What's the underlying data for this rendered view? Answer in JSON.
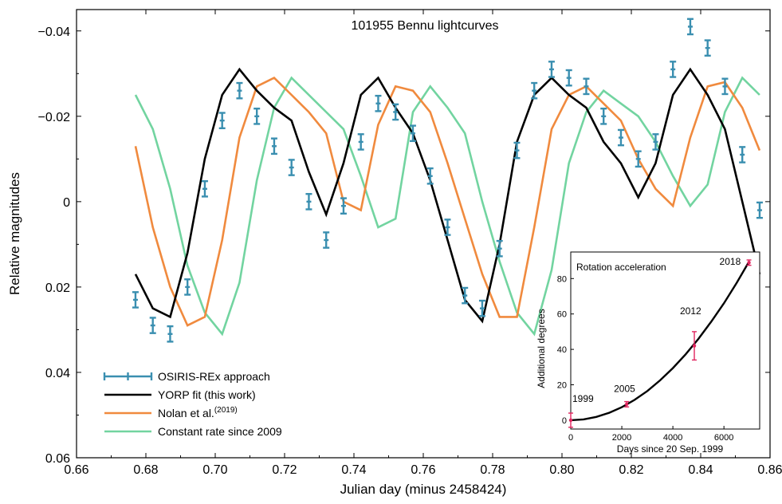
{
  "chart_data": [
    {
      "type": "line",
      "title": "101955 Bennu lightcurves",
      "xlabel": "Julian day (minus 2458424)",
      "ylabel": "Relative magnitudes",
      "xlim": [
        0.66,
        0.86
      ],
      "ylim": [
        0.06,
        -0.045
      ],
      "y_inverted": true,
      "grid": false,
      "legend_position": "bottom-left",
      "x_ticks": [
        {
          "value": 0.66,
          "label": "0.66"
        },
        {
          "value": 0.68,
          "label": "0.68"
        },
        {
          "value": 0.7,
          "label": "0.70"
        },
        {
          "value": 0.72,
          "label": "0.72"
        },
        {
          "value": 0.74,
          "label": "0.74"
        },
        {
          "value": 0.76,
          "label": "0.76"
        },
        {
          "value": 0.78,
          "label": "0.78"
        },
        {
          "value": 0.8,
          "label": "0.80"
        },
        {
          "value": 0.82,
          "label": "0.82"
        },
        {
          "value": 0.84,
          "label": "0.84"
        },
        {
          "value": 0.86,
          "label": "0.86"
        }
      ],
      "y_ticks": [
        {
          "value": -0.04,
          "label": "−0.04"
        },
        {
          "value": -0.02,
          "label": "−0.02"
        },
        {
          "value": 0,
          "label": "0"
        },
        {
          "value": 0.02,
          "label": "0.02"
        },
        {
          "value": 0.04,
          "label": "0.04"
        },
        {
          "value": 0.06,
          "label": "0.06"
        }
      ],
      "series": [
        {
          "name": "OSIRIS-REx approach",
          "kind": "errorbar",
          "color": "#3a8fb0",
          "points": [
            {
              "x": 0.677,
              "y": 0.023,
              "err": 0.0018
            },
            {
              "x": 0.682,
              "y": 0.029,
              "err": 0.0018
            },
            {
              "x": 0.687,
              "y": 0.031,
              "err": 0.0018
            },
            {
              "x": 0.692,
              "y": 0.02,
              "err": 0.0018
            },
            {
              "x": 0.697,
              "y": -0.003,
              "err": 0.0018
            },
            {
              "x": 0.702,
              "y": -0.019,
              "err": 0.0018
            },
            {
              "x": 0.707,
              "y": -0.026,
              "err": 0.0018
            },
            {
              "x": 0.712,
              "y": -0.02,
              "err": 0.0018
            },
            {
              "x": 0.717,
              "y": -0.013,
              "err": 0.0018
            },
            {
              "x": 0.722,
              "y": -0.008,
              "err": 0.0018
            },
            {
              "x": 0.727,
              "y": 0.0,
              "err": 0.0018
            },
            {
              "x": 0.732,
              "y": 0.009,
              "err": 0.0018
            },
            {
              "x": 0.737,
              "y": 0.001,
              "err": 0.0018
            },
            {
              "x": 0.742,
              "y": -0.014,
              "err": 0.0018
            },
            {
              "x": 0.747,
              "y": -0.023,
              "err": 0.0018
            },
            {
              "x": 0.752,
              "y": -0.021,
              "err": 0.0018
            },
            {
              "x": 0.757,
              "y": -0.016,
              "err": 0.0018
            },
            {
              "x": 0.762,
              "y": -0.006,
              "err": 0.0018
            },
            {
              "x": 0.767,
              "y": 0.006,
              "err": 0.0018
            },
            {
              "x": 0.772,
              "y": 0.022,
              "err": 0.0018
            },
            {
              "x": 0.777,
              "y": 0.025,
              "err": 0.0018
            },
            {
              "x": 0.782,
              "y": 0.011,
              "err": 0.0018
            },
            {
              "x": 0.787,
              "y": -0.012,
              "err": 0.0018
            },
            {
              "x": 0.792,
              "y": -0.026,
              "err": 0.0018
            },
            {
              "x": 0.797,
              "y": -0.031,
              "err": 0.0018
            },
            {
              "x": 0.802,
              "y": -0.029,
              "err": 0.0018
            },
            {
              "x": 0.807,
              "y": -0.027,
              "err": 0.0018
            },
            {
              "x": 0.812,
              "y": -0.02,
              "err": 0.0018
            },
            {
              "x": 0.817,
              "y": -0.015,
              "err": 0.0018
            },
            {
              "x": 0.822,
              "y": -0.01,
              "err": 0.0018
            },
            {
              "x": 0.827,
              "y": -0.014,
              "err": 0.0018
            },
            {
              "x": 0.832,
              "y": -0.031,
              "err": 0.0018
            },
            {
              "x": 0.837,
              "y": -0.041,
              "err": 0.0018
            },
            {
              "x": 0.842,
              "y": -0.036,
              "err": 0.0018
            },
            {
              "x": 0.847,
              "y": -0.027,
              "err": 0.0018
            },
            {
              "x": 0.852,
              "y": -0.011,
              "err": 0.0018
            },
            {
              "x": 0.857,
              "y": 0.002,
              "err": 0.0018
            }
          ]
        },
        {
          "name": "YORP fit (this work)",
          "kind": "line",
          "color": "#000000",
          "x": [
            0.677,
            0.682,
            0.687,
            0.692,
            0.697,
            0.702,
            0.707,
            0.712,
            0.717,
            0.722,
            0.727,
            0.732,
            0.737,
            0.742,
            0.747,
            0.752,
            0.757,
            0.762,
            0.767,
            0.772,
            0.777,
            0.782,
            0.787,
            0.792,
            0.797,
            0.802,
            0.807,
            0.812,
            0.817,
            0.822,
            0.827,
            0.832,
            0.837,
            0.842,
            0.847,
            0.852,
            0.857
          ],
          "values": [
            0.017,
            0.025,
            0.027,
            0.012,
            -0.01,
            -0.025,
            -0.031,
            -0.026,
            -0.022,
            -0.019,
            -0.007,
            0.003,
            -0.009,
            -0.025,
            -0.029,
            -0.022,
            -0.016,
            -0.005,
            0.009,
            0.023,
            0.028,
            0.01,
            -0.014,
            -0.025,
            -0.029,
            -0.025,
            -0.022,
            -0.014,
            -0.009,
            -0.001,
            -0.009,
            -0.025,
            -0.031,
            -0.025,
            -0.017,
            0.0,
            0.017
          ]
        },
        {
          "name": "Nolan et al.",
          "name_sup": "(2019)",
          "kind": "line",
          "color": "#f08a3e",
          "x": [
            0.677,
            0.682,
            0.687,
            0.692,
            0.697,
            0.702,
            0.707,
            0.712,
            0.717,
            0.722,
            0.727,
            0.732,
            0.737,
            0.742,
            0.747,
            0.752,
            0.757,
            0.762,
            0.767,
            0.772,
            0.777,
            0.782,
            0.787,
            0.792,
            0.797,
            0.802,
            0.807,
            0.812,
            0.817,
            0.822,
            0.827,
            0.832,
            0.837,
            0.842,
            0.847,
            0.852,
            0.857
          ],
          "values": [
            -0.013,
            0.006,
            0.02,
            0.029,
            0.027,
            0.009,
            -0.015,
            -0.027,
            -0.029,
            -0.025,
            -0.021,
            -0.016,
            0.0,
            0.002,
            -0.018,
            -0.027,
            -0.026,
            -0.021,
            -0.009,
            0.004,
            0.017,
            0.027,
            0.027,
            0.006,
            -0.017,
            -0.025,
            -0.027,
            -0.023,
            -0.019,
            -0.01,
            -0.003,
            0.001,
            -0.015,
            -0.027,
            -0.028,
            -0.022,
            -0.012
          ]
        },
        {
          "name": "Constant rate since 2009",
          "kind": "line",
          "color": "#72d4a0",
          "x": [
            0.677,
            0.682,
            0.687,
            0.692,
            0.697,
            0.702,
            0.707,
            0.712,
            0.717,
            0.722,
            0.727,
            0.732,
            0.737,
            0.742,
            0.747,
            0.752,
            0.757,
            0.762,
            0.767,
            0.772,
            0.777,
            0.782,
            0.787,
            0.792,
            0.797,
            0.802,
            0.807,
            0.812,
            0.817,
            0.822,
            0.827,
            0.832,
            0.837,
            0.842,
            0.847,
            0.852,
            0.857
          ],
          "values": [
            -0.025,
            -0.017,
            -0.003,
            0.015,
            0.026,
            0.031,
            0.019,
            -0.005,
            -0.022,
            -0.029,
            -0.025,
            -0.021,
            -0.017,
            -0.006,
            0.006,
            0.004,
            -0.021,
            -0.027,
            -0.022,
            -0.016,
            0.0,
            0.014,
            0.026,
            0.031,
            0.016,
            -0.009,
            -0.021,
            -0.026,
            -0.023,
            -0.02,
            -0.014,
            -0.006,
            0.001,
            -0.004,
            -0.021,
            -0.029,
            -0.025
          ]
        }
      ]
    },
    {
      "type": "line",
      "title": "Rotation acceleration",
      "xlabel": "Days since 20 Sep. 1999",
      "ylabel": "Additional degrees",
      "xlim": [
        0,
        7400
      ],
      "ylim": [
        -5,
        95
      ],
      "x_ticks": [
        {
          "value": 0,
          "label": "0"
        },
        {
          "value": 2000,
          "label": "2000"
        },
        {
          "value": 4000,
          "label": "4000"
        },
        {
          "value": 6000,
          "label": "6000"
        }
      ],
      "y_ticks": [
        {
          "value": 0,
          "label": "0"
        },
        {
          "value": 20,
          "label": "20"
        },
        {
          "value": 40,
          "label": "40"
        },
        {
          "value": 60,
          "label": "60"
        },
        {
          "value": 80,
          "label": "80"
        }
      ],
      "curve": {
        "color": "#000000",
        "x": [
          0,
          500,
          1000,
          1500,
          2000,
          2500,
          3000,
          3500,
          4000,
          4500,
          5000,
          5500,
          6000,
          6500,
          7000
        ],
        "values": [
          0,
          0.46,
          1.84,
          4.13,
          7.35,
          11.5,
          16.5,
          22.5,
          29.4,
          37.2,
          45.9,
          55.6,
          66.1,
          77.6,
          90.0
        ]
      },
      "points": [
        {
          "label": "1999",
          "x": 0,
          "y": 0,
          "err": 4
        },
        {
          "label": "2005",
          "x": 2190,
          "y": 9,
          "err": 1.5
        },
        {
          "label": "2012",
          "x": 4840,
          "y": 42,
          "err": 8
        },
        {
          "label": "2018",
          "x": 6980,
          "y": 89,
          "err": 1.5
        }
      ],
      "point_color": "#e0245e"
    }
  ]
}
